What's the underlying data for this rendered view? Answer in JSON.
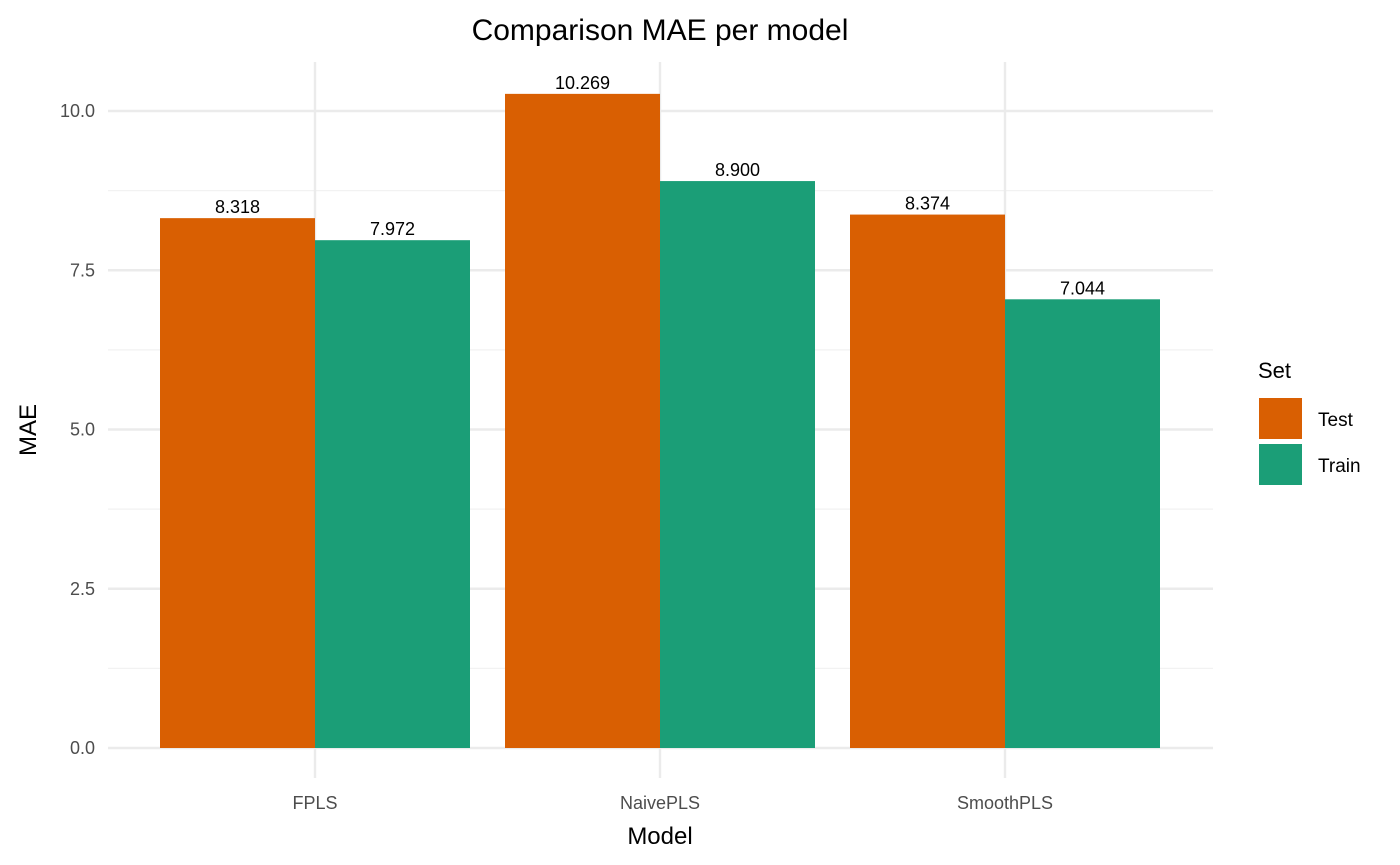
{
  "chart_data": {
    "type": "bar",
    "title": "Comparison MAE per model",
    "xlabel": "Model",
    "ylabel": "MAE",
    "categories": [
      "FPLS",
      "NaivePLS",
      "SmoothPLS"
    ],
    "series": [
      {
        "name": "Test",
        "color": "#D95F02",
        "values": [
          8.318,
          10.269,
          8.374
        ],
        "labels": [
          "8.318",
          "10.269",
          "8.374"
        ]
      },
      {
        "name": "Train",
        "color": "#1B9E77",
        "values": [
          7.972,
          8.9,
          7.044
        ],
        "labels": [
          "7.972",
          "8.900",
          "7.044"
        ]
      }
    ],
    "ylim": [
      0,
      10.8
    ],
    "yticks": [
      0,
      2.5,
      5,
      7.5,
      10
    ],
    "ytick_labels": [
      "0.0",
      "2.5",
      "5.0",
      "7.5",
      "10.0"
    ],
    "grid": true,
    "legend": {
      "title": "Set",
      "placement": "right"
    }
  }
}
